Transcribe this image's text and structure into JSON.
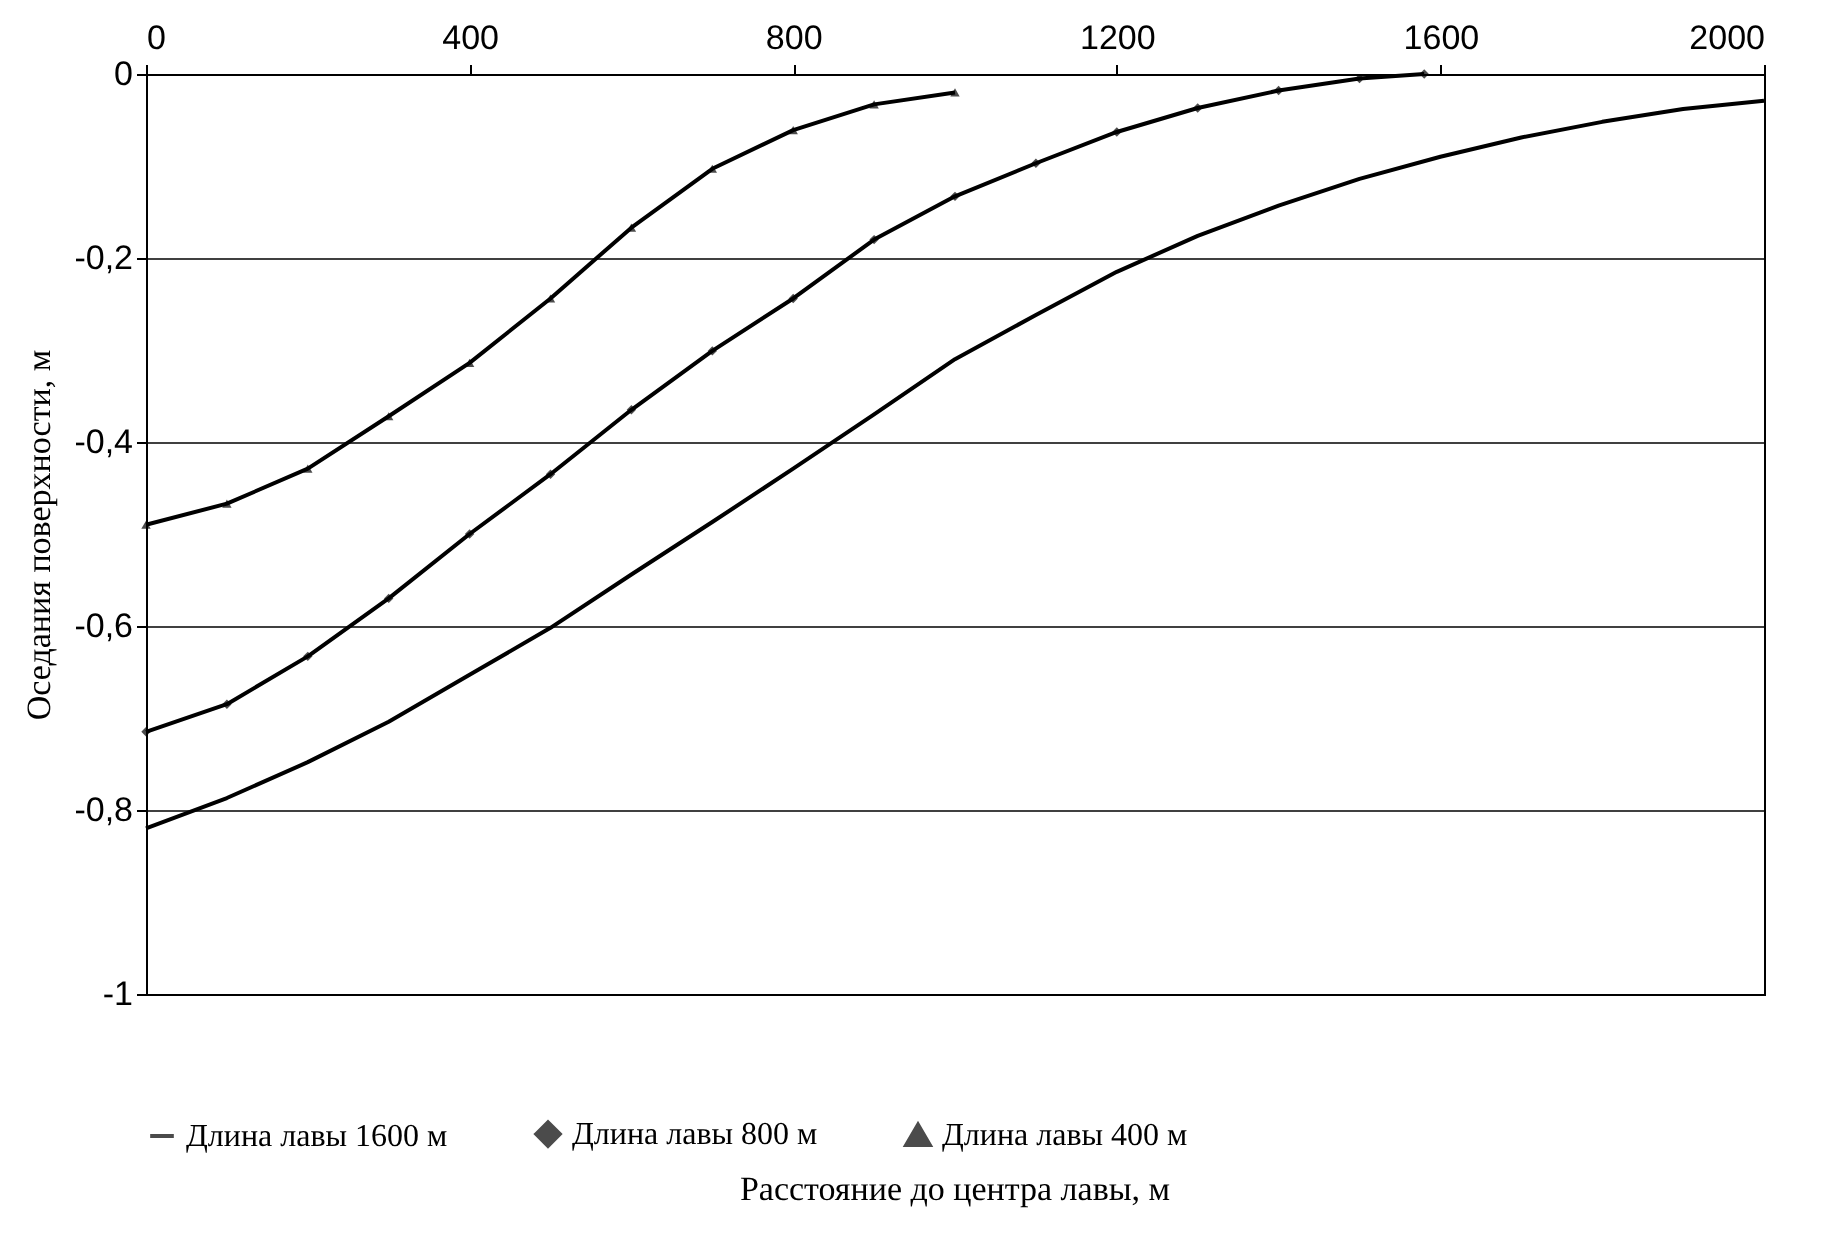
{
  "chart_data": {
    "type": "line",
    "xlabel": "Расстояние до центра лавы, м",
    "ylabel": "Оседания поверхности, м",
    "xlim": [
      0,
      2000
    ],
    "xticks": [
      0,
      400,
      800,
      1200,
      1600,
      2000
    ],
    "ylim": [
      -1,
      0
    ],
    "yticks": [
      {
        "value": -1,
        "label": "-1"
      },
      {
        "value": -0.8,
        "label": "-0,8"
      },
      {
        "value": -0.6,
        "label": "-0,6"
      },
      {
        "value": -0.4,
        "label": "-0,4"
      },
      {
        "value": -0.2,
        "label": "-0,2"
      },
      {
        "value": 0,
        "label": "0"
      }
    ],
    "grid": "y",
    "legend": "bottom",
    "line_style": "solid",
    "series": [
      {
        "name": "Длина лавы 1600 м",
        "color": "#000000",
        "marker": "none",
        "x": [
          0,
          100,
          200,
          300,
          400,
          500,
          600,
          700,
          800,
          900,
          1000,
          1100,
          1200,
          1300,
          1400,
          1500,
          1600,
          1700,
          1800,
          1900,
          2000
        ],
        "values": [
          -0.82,
          -0.787,
          -0.748,
          -0.704,
          -0.653,
          -0.602,
          -0.544,
          -0.487,
          -0.429,
          -0.37,
          -0.31,
          -0.262,
          -0.215,
          -0.176,
          -0.143,
          -0.114,
          -0.09,
          -0.069,
          -0.052,
          -0.038,
          -0.029
        ]
      },
      {
        "name": "Длина лавы 800 м",
        "color": "#000000",
        "marker": "diamond",
        "x": [
          0,
          100,
          200,
          300,
          400,
          500,
          600,
          700,
          800,
          900,
          1000,
          1100,
          1200,
          1300,
          1400,
          1500,
          1580
        ],
        "values": [
          -0.715,
          -0.685,
          -0.633,
          -0.57,
          -0.5,
          -0.435,
          -0.365,
          -0.301,
          -0.244,
          -0.18,
          -0.133,
          -0.097,
          -0.063,
          -0.037,
          -0.018,
          -0.005,
          0
        ]
      },
      {
        "name": "Длина лавы 400 м",
        "color": "#000000",
        "marker": "triangle",
        "x": [
          0,
          100,
          200,
          300,
          400,
          500,
          600,
          700,
          800,
          900,
          1000
        ],
        "values": [
          -0.49,
          -0.467,
          -0.429,
          -0.372,
          -0.314,
          -0.244,
          -0.167,
          -0.103,
          -0.061,
          -0.033,
          -0.02
        ]
      }
    ]
  }
}
